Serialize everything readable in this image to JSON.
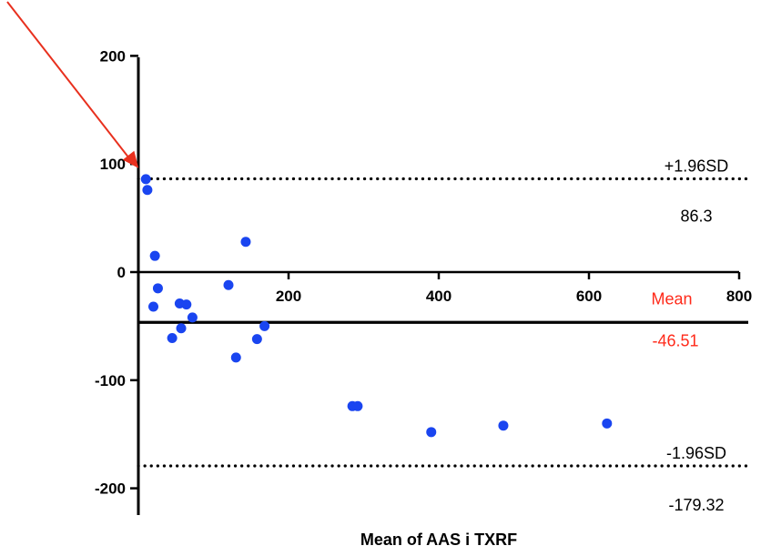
{
  "chart_data": {
    "type": "scatter",
    "title": "",
    "xlabel": "Mean of  AAS i TXRF",
    "ylabel": "",
    "xlim": [
      0,
      800
    ],
    "ylim": [
      -210,
      210
    ],
    "x_ticks": [
      200,
      400,
      600,
      800
    ],
    "y_ticks": [
      200,
      100,
      0,
      -100,
      -200
    ],
    "grid": false,
    "series": [
      {
        "points": [
          {
            "x": 10,
            "y": 86
          },
          {
            "x": 12,
            "y": 76
          },
          {
            "x": 22,
            "y": 15
          },
          {
            "x": 20,
            "y": -32
          },
          {
            "x": 26,
            "y": -15
          },
          {
            "x": 45,
            "y": -61
          },
          {
            "x": 55,
            "y": -29
          },
          {
            "x": 57,
            "y": -52
          },
          {
            "x": 64,
            "y": -30
          },
          {
            "x": 72,
            "y": -42
          },
          {
            "x": 120,
            "y": -12
          },
          {
            "x": 130,
            "y": -79
          },
          {
            "x": 143,
            "y": 28
          },
          {
            "x": 158,
            "y": -62
          },
          {
            "x": 168,
            "y": -50
          },
          {
            "x": 285,
            "y": -124
          },
          {
            "x": 292,
            "y": -124
          },
          {
            "x": 390,
            "y": -148
          },
          {
            "x": 486,
            "y": -142
          },
          {
            "x": 624,
            "y": -140
          }
        ]
      }
    ],
    "reference_lines": [
      {
        "name": "+1.96SD",
        "value": 86.3,
        "value_label": "86.3",
        "style": "dotted",
        "label_color": "#000000"
      },
      {
        "name": "Mean",
        "value": -46.51,
        "value_label": "-46.51",
        "style": "solid",
        "label_color": "#ff2a1a"
      },
      {
        "name": "-1.96SD",
        "value": -179.32,
        "value_label": "-179.32",
        "style": "dotted",
        "label_color": "#000000"
      }
    ],
    "annotation": {
      "type": "arrow",
      "points_to": {
        "x": 10,
        "y": 86
      },
      "color": "#e8301e"
    },
    "colors": {
      "points": "#1a45f0",
      "axes": "#000000",
      "mean_label": "#ff2a1a"
    }
  }
}
